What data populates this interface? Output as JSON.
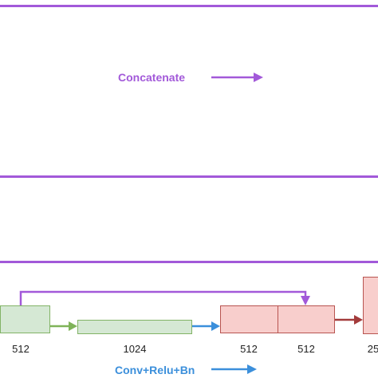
{
  "legend": {
    "concatenate_label": "Concatenate",
    "conv_label": "Conv+Relu+Bn"
  },
  "blocks": [
    {
      "name": "block-512-left",
      "label": "512"
    },
    {
      "name": "block-1024",
      "label": "1024"
    },
    {
      "name": "block-512-concat-a",
      "label": "512"
    },
    {
      "name": "block-512-concat-b",
      "label": "512"
    },
    {
      "name": "block-256-partial",
      "label": "25"
    }
  ],
  "colors": {
    "concat": "#a259d9",
    "conv": "#3b8fdb",
    "green_arrow": "#7fb359",
    "red_arrow": "#a33b3b",
    "green_fill": "#d5e8d4",
    "red_fill": "#f8cecc"
  }
}
